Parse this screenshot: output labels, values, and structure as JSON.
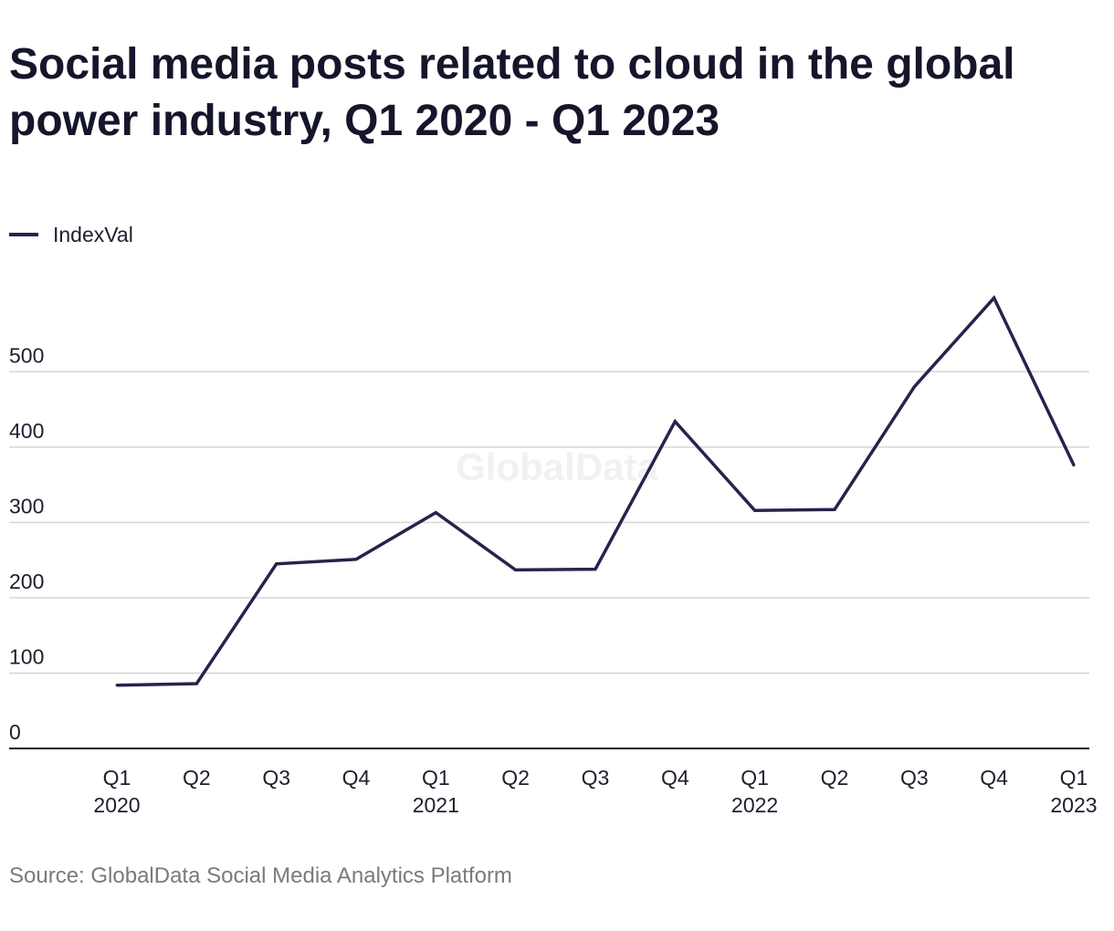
{
  "title": "Social media posts related to cloud in the global power industry, Q1 2020 - Q1 2023",
  "source": "Source: GlobalData Social Media Analytics Platform",
  "watermark": "GlobalData",
  "colors": {
    "line": "#2e1f4d",
    "grid": "#d6d6d6",
    "axis": "#1a1a1a",
    "text": "#1e1e2e",
    "source": "#7a7a7a"
  },
  "chart_data": {
    "type": "line",
    "title": "Social media posts related to cloud in the global power industry, Q1 2020 - Q1 2023",
    "categories": [
      [
        "Q1",
        "2020"
      ],
      [
        "Q2"
      ],
      [
        "Q3"
      ],
      [
        "Q4"
      ],
      [
        "Q1",
        "2021"
      ],
      [
        "Q2"
      ],
      [
        "Q3"
      ],
      [
        "Q4"
      ],
      [
        "Q1",
        "2022"
      ],
      [
        "Q2"
      ],
      [
        "Q3"
      ],
      [
        "Q4"
      ],
      [
        "Q1",
        "2023"
      ]
    ],
    "series": [
      {
        "name": "IndexVal",
        "values": [
          84,
          86,
          245,
          251,
          313,
          237,
          238,
          434,
          316,
          317,
          480,
          598,
          376
        ]
      }
    ],
    "yticks": [
      0,
      100,
      200,
      300,
      400,
      500
    ],
    "ylim": [
      0,
      620
    ],
    "xlabel": "",
    "ylabel": "",
    "grid": true,
    "legend": "top-left"
  }
}
